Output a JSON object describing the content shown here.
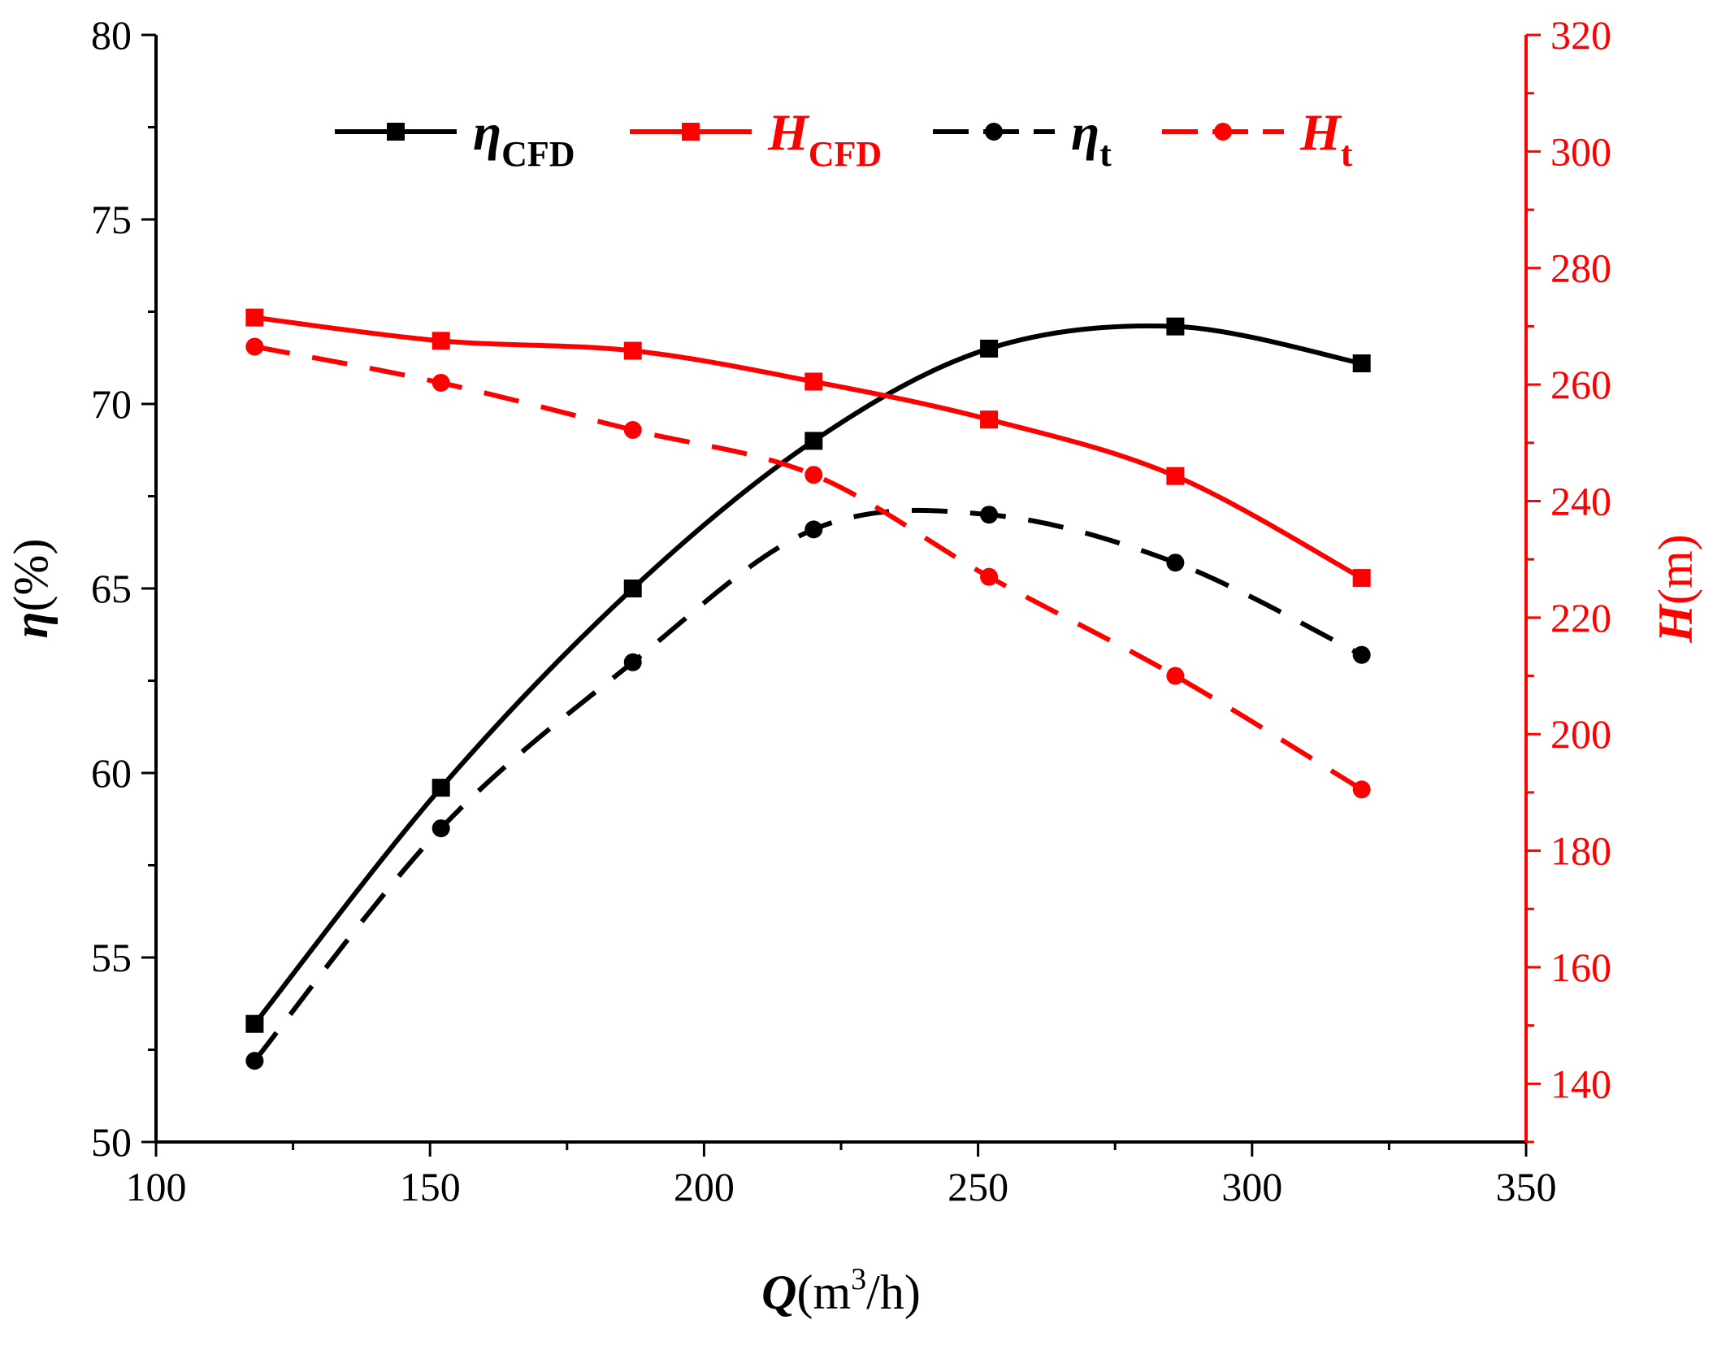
{
  "chart_data": {
    "type": "line",
    "title": "",
    "x": [
      118,
      152,
      187,
      220,
      252,
      286,
      320
    ],
    "xlim": [
      100,
      350
    ],
    "xticks": [
      100,
      150,
      200,
      250,
      300,
      350
    ],
    "xlabel": {
      "symbol": "Q",
      "unit": "(m",
      "sup": "3",
      "unit_end": "/h)"
    },
    "y_left": {
      "label": {
        "symbol": "η",
        "unit": "(%)"
      },
      "lim": [
        50,
        80
      ],
      "ticks": [
        50,
        55,
        60,
        65,
        70,
        75,
        80
      ],
      "color": "#000000"
    },
    "y_right": {
      "label": {
        "symbol": "H",
        "unit": "(m)"
      },
      "lim": [
        130,
        320
      ],
      "ticks": [
        140,
        160,
        180,
        200,
        220,
        240,
        260,
        280,
        300,
        320
      ],
      "color": "#ff0000"
    },
    "series": [
      {
        "name": "η",
        "sub": "CFD",
        "axis": "left",
        "color": "#000000",
        "dash": "solid",
        "marker": "square",
        "values": [
          53.2,
          59.6,
          65.0,
          69.0,
          71.5,
          72.1,
          71.1
        ]
      },
      {
        "name": "H",
        "sub": "CFD",
        "axis": "right",
        "color": "#ff0000",
        "dash": "solid",
        "marker": "square",
        "values": [
          271.5,
          267.5,
          265.8,
          260.5,
          254.0,
          244.3,
          226.8
        ]
      },
      {
        "name": "η",
        "sub": "t",
        "axis": "left",
        "color": "#000000",
        "dash": "dashed",
        "marker": "circle",
        "values": [
          52.2,
          58.5,
          63.0,
          66.6,
          67.0,
          65.7,
          63.2
        ]
      },
      {
        "name": "H",
        "sub": "t",
        "axis": "right",
        "color": "#ff0000",
        "dash": "dashed",
        "marker": "circle",
        "values": [
          266.5,
          260.3,
          252.2,
          244.5,
          227.0,
          210.0,
          190.5
        ]
      }
    ],
    "legend_position": "top-center",
    "grid": false
  }
}
